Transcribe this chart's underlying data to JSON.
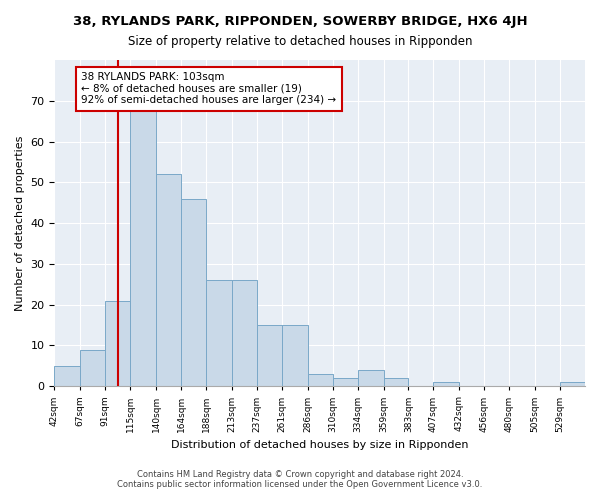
{
  "title": "38, RYLANDS PARK, RIPPONDEN, SOWERBY BRIDGE, HX6 4JH",
  "subtitle": "Size of property relative to detached houses in Ripponden",
  "xlabel": "Distribution of detached houses by size in Ripponden",
  "ylabel": "Number of detached properties",
  "bar_values": [
    5,
    9,
    21,
    68,
    52,
    46,
    26,
    26,
    15,
    15,
    3,
    2,
    4,
    2,
    0,
    1,
    0,
    0,
    0,
    0,
    1
  ],
  "bin_labels": [
    "42sqm",
    "67sqm",
    "91sqm",
    "115sqm",
    "140sqm",
    "164sqm",
    "188sqm",
    "213sqm",
    "237sqm",
    "261sqm",
    "286sqm",
    "310sqm",
    "334sqm",
    "359sqm",
    "383sqm",
    "407sqm",
    "432sqm",
    "456sqm",
    "480sqm",
    "505sqm",
    "529sqm"
  ],
  "bin_edges": [
    42,
    67,
    91,
    115,
    140,
    164,
    188,
    213,
    237,
    261,
    286,
    310,
    334,
    359,
    383,
    407,
    432,
    456,
    480,
    505,
    529,
    553
  ],
  "bar_color": "#c9d9e8",
  "bar_edge_color": "#7aa8c8",
  "property_line_x": 103,
  "property_line_color": "#cc0000",
  "annotation_text": "38 RYLANDS PARK: 103sqm\n← 8% of detached houses are smaller (19)\n92% of semi-detached houses are larger (234) →",
  "annotation_box_color": "#ffffff",
  "annotation_box_edge_color": "#cc0000",
  "ylim": [
    0,
    80
  ],
  "yticks": [
    0,
    10,
    20,
    30,
    40,
    50,
    60,
    70,
    80
  ],
  "background_color": "#e8eef5",
  "footer_line1": "Contains HM Land Registry data © Crown copyright and database right 2024.",
  "footer_line2": "Contains public sector information licensed under the Open Government Licence v3.0."
}
